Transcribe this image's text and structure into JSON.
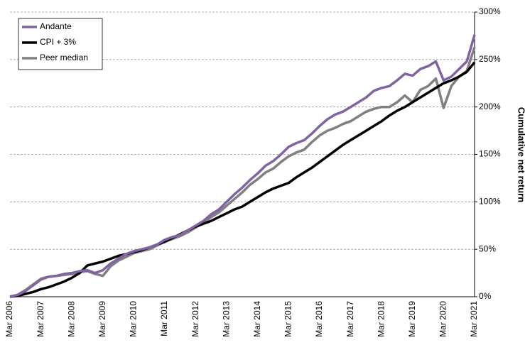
{
  "chart_data": {
    "type": "line",
    "y_label": "Cumulative net return",
    "categories": [
      "Mar 2006",
      null,
      null,
      null,
      "Mar 2007",
      null,
      null,
      null,
      "Mar 2008",
      null,
      null,
      null,
      "Mar 2009",
      null,
      null,
      null,
      "Mar 2010",
      null,
      null,
      null,
      "Mar 2011",
      null,
      null,
      null,
      "Mar 2012",
      null,
      null,
      null,
      "Mar 2013",
      null,
      null,
      null,
      "Mar 2014",
      null,
      null,
      null,
      "Mar 2015",
      null,
      null,
      null,
      "Mar 2016",
      null,
      null,
      null,
      "Mar 2017",
      null,
      null,
      null,
      "Mar 2018",
      null,
      null,
      null,
      "Mar 2019",
      null,
      null,
      null,
      "Mar 2020",
      null,
      null,
      null,
      "Mar 2021"
    ],
    "series": [
      {
        "name": "Andante",
        "color": "#8064a2",
        "values": [
          0,
          2,
          6,
          12,
          18,
          21,
          22,
          24,
          25,
          27,
          28,
          25,
          28,
          35,
          40,
          45,
          48,
          50,
          52,
          55,
          60,
          63,
          65,
          70,
          75,
          80,
          87,
          92,
          100,
          108,
          115,
          123,
          130,
          138,
          143,
          150,
          158,
          162,
          165,
          172,
          180,
          187,
          192,
          195,
          200,
          205,
          210,
          217,
          220,
          222,
          228,
          235,
          233,
          240,
          243,
          248,
          228,
          232,
          240,
          248,
          276
        ]
      },
      {
        "name": "CPI + 3%",
        "color": "#000000",
        "values": [
          0,
          1,
          3,
          5,
          8,
          10,
          13,
          16,
          20,
          25,
          33,
          35,
          37,
          40,
          43,
          45,
          47,
          49,
          52,
          55,
          58,
          62,
          66,
          70,
          74,
          77,
          80,
          84,
          88,
          92,
          95,
          100,
          105,
          110,
          114,
          117,
          120,
          126,
          131,
          136,
          142,
          148,
          154,
          160,
          165,
          170,
          175,
          180,
          185,
          191,
          196,
          200,
          205,
          210,
          215,
          220,
          225,
          228,
          232,
          237,
          247
        ]
      },
      {
        "name": "Peer median",
        "color": "#808080",
        "values": [
          0,
          2,
          7,
          13,
          19,
          21,
          22,
          23,
          24,
          26,
          27,
          24,
          22,
          32,
          38,
          42,
          46,
          48,
          50,
          54,
          58,
          61,
          64,
          68,
          73,
          78,
          84,
          89,
          96,
          103,
          110,
          118,
          124,
          131,
          135,
          142,
          148,
          152,
          155,
          163,
          170,
          175,
          178,
          182,
          185,
          190,
          195,
          198,
          200,
          200,
          205,
          212,
          205,
          218,
          222,
          230,
          199,
          222,
          232,
          238,
          263
        ]
      }
    ],
    "ylim": [
      0,
      300
    ],
    "yticks": [
      {
        "value": 0,
        "label": "0%"
      },
      {
        "value": 50,
        "label": "50%"
      },
      {
        "value": 100,
        "label": "100%"
      },
      {
        "value": 150,
        "label": "150%"
      },
      {
        "value": 200,
        "label": "200%"
      },
      {
        "value": 250,
        "label": "250%"
      },
      {
        "value": 300,
        "label": "300%"
      }
    ],
    "grid": true,
    "legend": "top-left"
  }
}
